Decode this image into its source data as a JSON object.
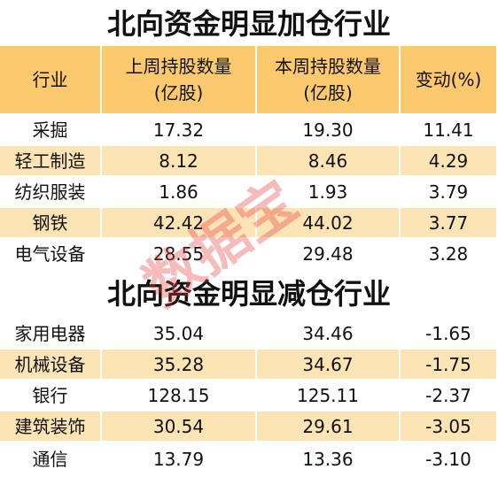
{
  "sections": [
    {
      "title": "北向资金明显加仓行业",
      "header": [
        [
          "行业"
        ],
        [
          "上周持股数量",
          "(亿股)"
        ],
        [
          "本周持股数量",
          "(亿股)"
        ],
        [
          "变动(%)"
        ]
      ],
      "rows": [
        [
          "采掘",
          "17.32",
          "19.30",
          "11.41"
        ],
        [
          "轻工制造",
          "8.12",
          "8.46",
          "4.29"
        ],
        [
          "纺织服装",
          "1.86",
          "1.93",
          "3.79"
        ],
        [
          "钢铁",
          "42.42",
          "44.02",
          "3.77"
        ],
        [
          "电气设备",
          "28.55",
          "29.48",
          "3.28"
        ]
      ]
    },
    {
      "title": "北向资金明显减仓行业",
      "rows": [
        [
          "家用电器",
          "35.04",
          "34.46",
          "-1.65"
        ],
        [
          "机械设备",
          "35.28",
          "34.67",
          "-1.75"
        ],
        [
          "银行",
          "128.15",
          "125.11",
          "-2.37"
        ],
        [
          "建筑装饰",
          "30.54",
          "29.61",
          "-3.05"
        ],
        [
          "通信",
          "13.79",
          "13.36",
          "-3.10"
        ]
      ]
    }
  ],
  "watermark": "数据宝"
}
